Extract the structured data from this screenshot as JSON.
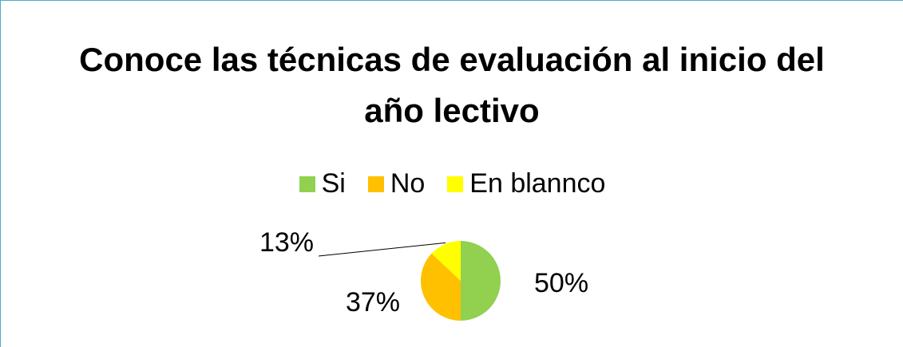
{
  "chart_data": {
    "type": "pie",
    "title": "Conoce las técnicas de evaluación al inicio del año lectivo",
    "categories": [
      "Si",
      "No",
      "En blannco"
    ],
    "values": [
      50,
      37,
      13
    ],
    "value_labels": [
      "50%",
      "37%",
      "13%"
    ],
    "colors": [
      "#92d050",
      "#ffc000",
      "#ffff00"
    ],
    "legend": "top"
  }
}
